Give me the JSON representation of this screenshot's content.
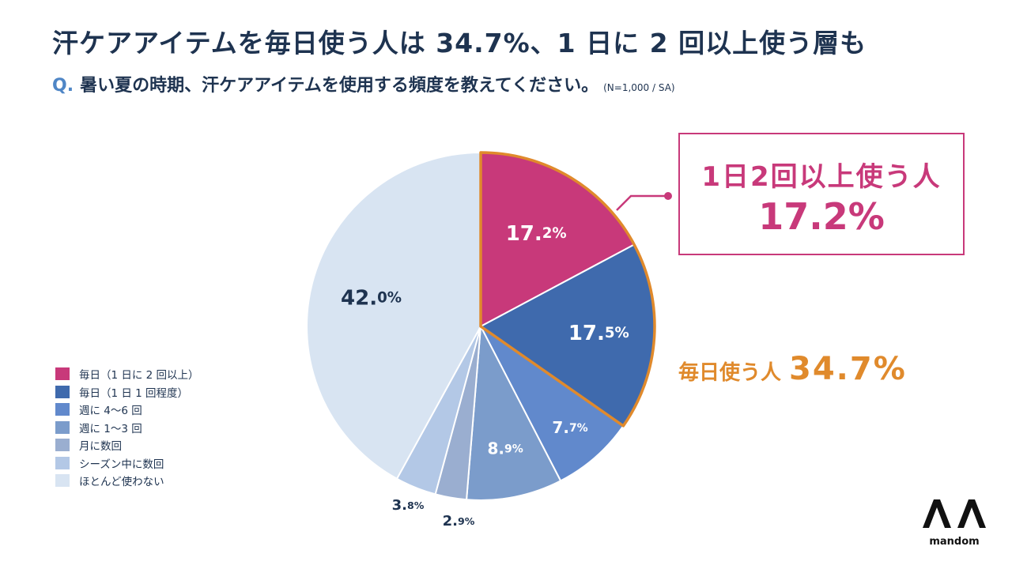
{
  "title": "汗ケアアイテムを毎日使う人は 34.7%、1 日に 2 回以上使う層も",
  "question": {
    "prefix": "Q.",
    "text": "暑い夏の時期、汗ケアアイテムを使用する頻度を教えてください。",
    "note": "(N=1,000 / SA)"
  },
  "chart_data": {
    "type": "pie",
    "start": "top",
    "direction": "clockwise",
    "categories": [
      "毎日（1 日に 2 回以上）",
      "毎日（1 日 1 回程度）",
      "週に 4〜6 回",
      "週に 1〜3 回",
      "月に数回",
      "シーズン中に数回",
      "ほとんど使わない"
    ],
    "values": [
      17.2,
      17.5,
      7.7,
      8.9,
      2.9,
      3.8,
      42.0
    ],
    "labels": [
      "17.2%",
      "17.5%",
      "7.7%",
      "8.9%",
      "2.9%",
      "3.8%",
      "42.0%"
    ],
    "colors": [
      "#c8397a",
      "#3f6aad",
      "#6189cc",
      "#7b9ccb",
      "#9aaed0",
      "#b3c8e6",
      "#d8e4f2"
    ],
    "legend_position": "left"
  },
  "callout": {
    "line1": "1日2回以上使う人",
    "value": "17.2%",
    "color": "#c8397a"
  },
  "daily": {
    "label": "毎日使う人",
    "value": "34.7%",
    "color": "#e08a2c"
  },
  "logo": {
    "brand": "mandom"
  }
}
